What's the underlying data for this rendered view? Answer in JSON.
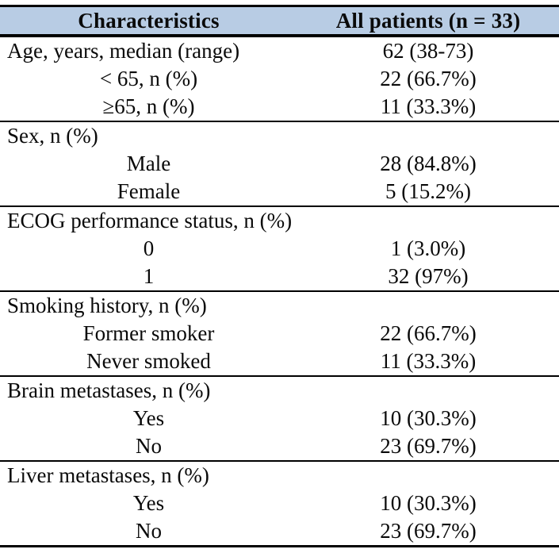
{
  "table": {
    "columns": {
      "characteristics": "Characteristics",
      "all_patients": "All patients (n = 33)"
    },
    "colors": {
      "header_bg": "#b8cce4",
      "border": "#000000",
      "text": "#0a0a0a"
    },
    "sections": [
      {
        "rows": [
          {
            "label": "Age, years, median (range)",
            "value": "62 (38-73)",
            "align": "left"
          },
          {
            "label": "< 65, n (%)",
            "value": "22 (66.7%)",
            "align": "center"
          },
          {
            "label": "≥65, n (%)",
            "value": "11 (33.3%)",
            "align": "center"
          }
        ]
      },
      {
        "rows": [
          {
            "label": "Sex, n (%)",
            "value": "",
            "align": "left"
          },
          {
            "label": "Male",
            "value": "28 (84.8%)",
            "align": "center"
          },
          {
            "label": "Female",
            "value": "5 (15.2%)",
            "align": "center"
          }
        ]
      },
      {
        "rows": [
          {
            "label": "ECOG performance status, n (%)",
            "value": "",
            "align": "left"
          },
          {
            "label": "0",
            "value": "1 (3.0%)",
            "align": "center"
          },
          {
            "label": "1",
            "value": "32 (97%)",
            "align": "center"
          }
        ]
      },
      {
        "rows": [
          {
            "label": "Smoking history, n (%)",
            "value": "",
            "align": "left"
          },
          {
            "label": "Former smoker",
            "value": "22 (66.7%)",
            "align": "center"
          },
          {
            "label": "Never smoked",
            "value": "11 (33.3%)",
            "align": "center"
          }
        ]
      },
      {
        "rows": [
          {
            "label": "Brain metastases, n (%)",
            "value": "",
            "align": "left"
          },
          {
            "label": "Yes",
            "value": "10 (30.3%)",
            "align": "center"
          },
          {
            "label": "No",
            "value": "23 (69.7%)",
            "align": "center"
          }
        ]
      },
      {
        "rows": [
          {
            "label": "Liver metastases, n (%)",
            "value": "",
            "align": "left"
          },
          {
            "label": "Yes",
            "value": "10 (30.3%)",
            "align": "center"
          },
          {
            "label": "No",
            "value": "23 (69.7%)",
            "align": "center"
          }
        ]
      }
    ]
  }
}
